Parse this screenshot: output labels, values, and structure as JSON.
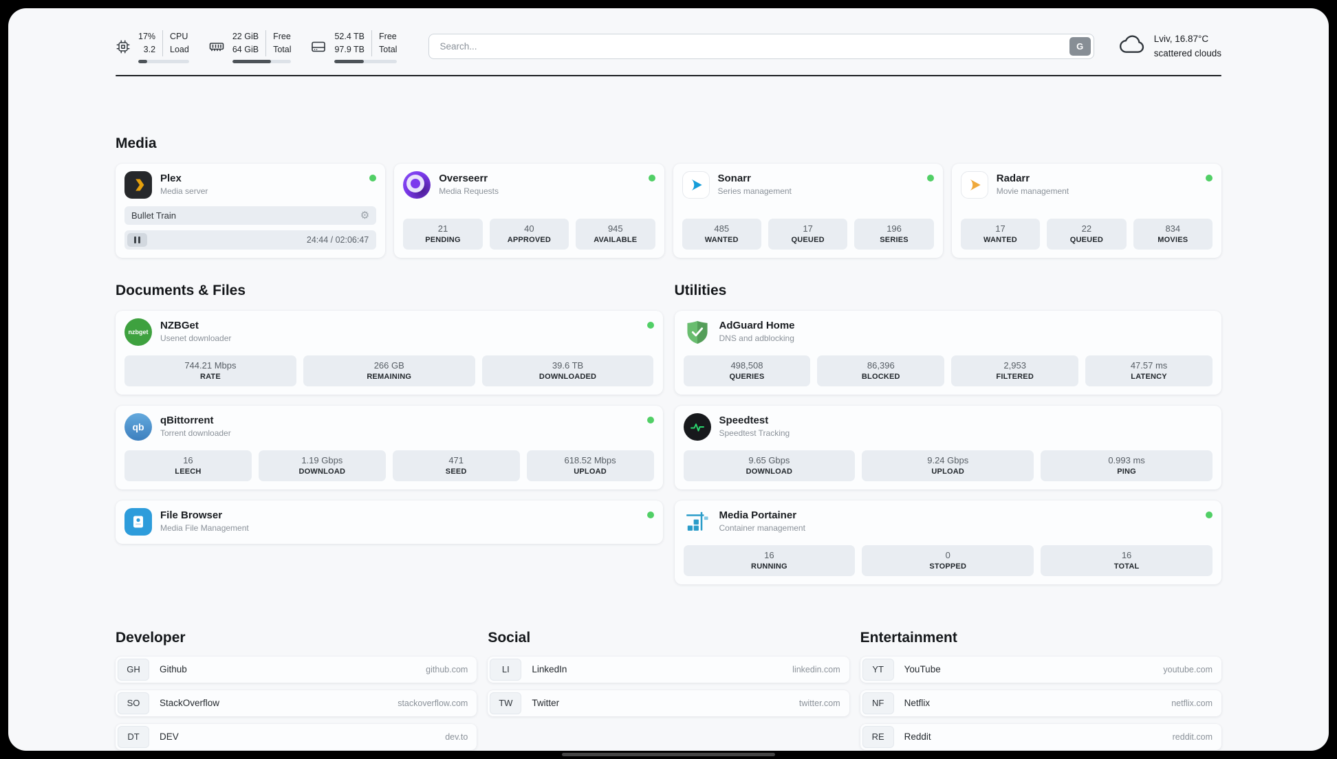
{
  "header": {
    "metrics": [
      {
        "name": "cpu",
        "top_value": "17%",
        "bottom_value": "3.2",
        "top_label": "CPU",
        "bottom_label": "Load",
        "progress": 17
      },
      {
        "name": "memory",
        "top_value": "22 GiB",
        "bottom_value": "64 GiB",
        "top_label": "Free",
        "bottom_label": "Total",
        "progress": 66
      },
      {
        "name": "storage",
        "top_value": "52.4 TB",
        "bottom_value": "97.9 TB",
        "top_label": "Free",
        "bottom_label": "Total",
        "progress": 47
      }
    ],
    "search": {
      "placeholder": "Search...",
      "button_label": "G"
    },
    "weather": {
      "location": "Lviv, 16.87°C",
      "condition": "scattered clouds"
    }
  },
  "sections": {
    "media": {
      "title": "Media",
      "apps": [
        {
          "name": "Plex",
          "desc": "Media server",
          "status": "online",
          "player": {
            "track": "Bullet Train",
            "time": "24:44 / 02:06:47"
          }
        },
        {
          "name": "Overseerr",
          "desc": "Media Requests",
          "status": "online",
          "stats": [
            {
              "value": "21",
              "label": "PENDING"
            },
            {
              "value": "40",
              "label": "APPROVED"
            },
            {
              "value": "945",
              "label": "AVAILABLE"
            }
          ]
        },
        {
          "name": "Sonarr",
          "desc": "Series management",
          "status": "online",
          "stats": [
            {
              "value": "485",
              "label": "WANTED"
            },
            {
              "value": "17",
              "label": "QUEUED"
            },
            {
              "value": "196",
              "label": "SERIES"
            }
          ]
        },
        {
          "name": "Radarr",
          "desc": "Movie management",
          "status": "online",
          "stats": [
            {
              "value": "17",
              "label": "WANTED"
            },
            {
              "value": "22",
              "label": "QUEUED"
            },
            {
              "value": "834",
              "label": "MOVIES"
            }
          ]
        }
      ]
    },
    "documents": {
      "title": "Documents & Files",
      "apps": [
        {
          "name": "NZBGet",
          "desc": "Usenet downloader",
          "status": "online",
          "icon_text": "nzbget",
          "stats": [
            {
              "value": "744.21 Mbps",
              "label": "RATE"
            },
            {
              "value": "266 GB",
              "label": "REMAINING"
            },
            {
              "value": "39.6 TB",
              "label": "DOWNLOADED"
            }
          ]
        },
        {
          "name": "qBittorrent",
          "desc": "Torrent downloader",
          "status": "online",
          "icon_text": "qb",
          "stats": [
            {
              "value": "16",
              "label": "LEECH"
            },
            {
              "value": "1.19 Gbps",
              "label": "DOWNLOAD"
            },
            {
              "value": "471",
              "label": "SEED"
            },
            {
              "value": "618.52 Mbps",
              "label": "UPLOAD"
            }
          ]
        },
        {
          "name": "File Browser",
          "desc": "Media File Management",
          "status": "online"
        }
      ]
    },
    "utilities": {
      "title": "Utilities",
      "apps": [
        {
          "name": "AdGuard Home",
          "desc": "DNS and adblocking",
          "stats": [
            {
              "value": "498,508",
              "label": "QUERIES"
            },
            {
              "value": "86,396",
              "label": "BLOCKED"
            },
            {
              "value": "2,953",
              "label": "FILTERED"
            },
            {
              "value": "47.57 ms",
              "label": "LATENCY"
            }
          ]
        },
        {
          "name": "Speedtest",
          "desc": "Speedtest Tracking",
          "stats": [
            {
              "value": "9.65 Gbps",
              "label": "DOWNLOAD"
            },
            {
              "value": "9.24 Gbps",
              "label": "UPLOAD"
            },
            {
              "value": "0.993 ms",
              "label": "PING"
            }
          ]
        },
        {
          "name": "Media Portainer",
          "desc": "Container management",
          "status": "online",
          "stats": [
            {
              "value": "16",
              "label": "RUNNING"
            },
            {
              "value": "0",
              "label": "STOPPED"
            },
            {
              "value": "16",
              "label": "TOTAL"
            }
          ]
        }
      ]
    }
  },
  "bookmarks": [
    {
      "title": "Developer",
      "items": [
        {
          "abbr": "GH",
          "name": "Github",
          "url": "github.com"
        },
        {
          "abbr": "SO",
          "name": "StackOverflow",
          "url": "stackoverflow.com"
        },
        {
          "abbr": "DT",
          "name": "DEV",
          "url": "dev.to"
        }
      ]
    },
    {
      "title": "Social",
      "items": [
        {
          "abbr": "LI",
          "name": "LinkedIn",
          "url": "linkedin.com"
        },
        {
          "abbr": "TW",
          "name": "Twitter",
          "url": "twitter.com"
        }
      ]
    },
    {
      "title": "Entertainment",
      "items": [
        {
          "abbr": "YT",
          "name": "YouTube",
          "url": "youtube.com"
        },
        {
          "abbr": "NF",
          "name": "Netflix",
          "url": "netflix.com"
        },
        {
          "abbr": "RE",
          "name": "Reddit",
          "url": "reddit.com"
        }
      ]
    }
  ],
  "colors": {
    "status_online": "#51cf66",
    "stat_box": "#e9edf2",
    "page_background": "#f7f8fa"
  }
}
